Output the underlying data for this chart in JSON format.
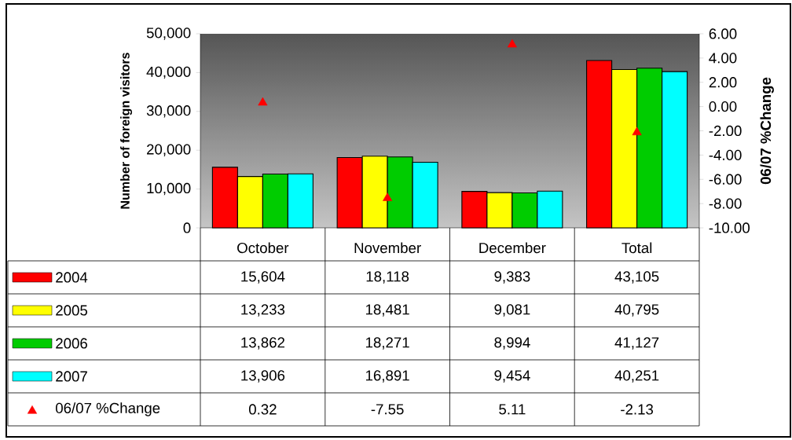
{
  "chart_data": {
    "type": "bar",
    "ylabel": "Number of foreign visitors",
    "y2label": "06/07 %Change",
    "categories": [
      "October",
      "November",
      "December",
      "Total"
    ],
    "series": [
      {
        "name": "2004",
        "color": "#ff0000",
        "values": [
          15604,
          18118,
          9383,
          43105
        ],
        "value_labels": [
          "15,604",
          "18,118",
          "9,383",
          "43,105"
        ]
      },
      {
        "name": "2005",
        "color": "#ffff00",
        "values": [
          13233,
          18481,
          9081,
          40795
        ],
        "value_labels": [
          "13,233",
          "18,481",
          "9,081",
          "40,795"
        ]
      },
      {
        "name": "2006",
        "color": "#00cc00",
        "values": [
          13862,
          18271,
          8994,
          41127
        ],
        "value_labels": [
          "13,862",
          "18,271",
          "8,994",
          "41,127"
        ]
      },
      {
        "name": "2007",
        "color": "#00ffff",
        "values": [
          13906,
          16891,
          9454,
          40251
        ],
        "value_labels": [
          "13,906",
          "16,891",
          "9,454",
          "40,251"
        ]
      },
      {
        "name": "06/07 %Change",
        "type": "scatter",
        "axis": "y2",
        "marker": "triangle",
        "color": "#ff0000",
        "values": [
          0.32,
          -7.55,
          5.11,
          -2.13
        ],
        "value_labels": [
          "0.32",
          "-7.55",
          "5.11",
          "-2.13"
        ]
      }
    ],
    "legend": "left",
    "ylim": [
      0,
      50000
    ],
    "yticks": [
      0,
      {
        "value": 10000,
        "label": "10,000"
      },
      {
        "value": 20000,
        "label": "20,000"
      },
      {
        "value": 30000,
        "label": "30,000"
      },
      {
        "value": 40000,
        "label": "40,000"
      },
      {
        "value": 50000,
        "label": "50,000"
      }
    ],
    "y2lim": [
      -10,
      6
    ],
    "y2ticks": [
      {
        "value": -10,
        "label": "-10.00"
      },
      {
        "value": -8,
        "label": "-8.00"
      },
      {
        "value": -6,
        "label": "-6.00"
      },
      {
        "value": -4,
        "label": "-4.00"
      },
      {
        "value": -2,
        "label": "-2.00"
      },
      {
        "value": 0,
        "label": "0.00"
      },
      {
        "value": 2,
        "label": "2.00"
      },
      {
        "value": 4,
        "label": "4.00"
      },
      {
        "value": 6,
        "label": "6.00"
      }
    ]
  }
}
